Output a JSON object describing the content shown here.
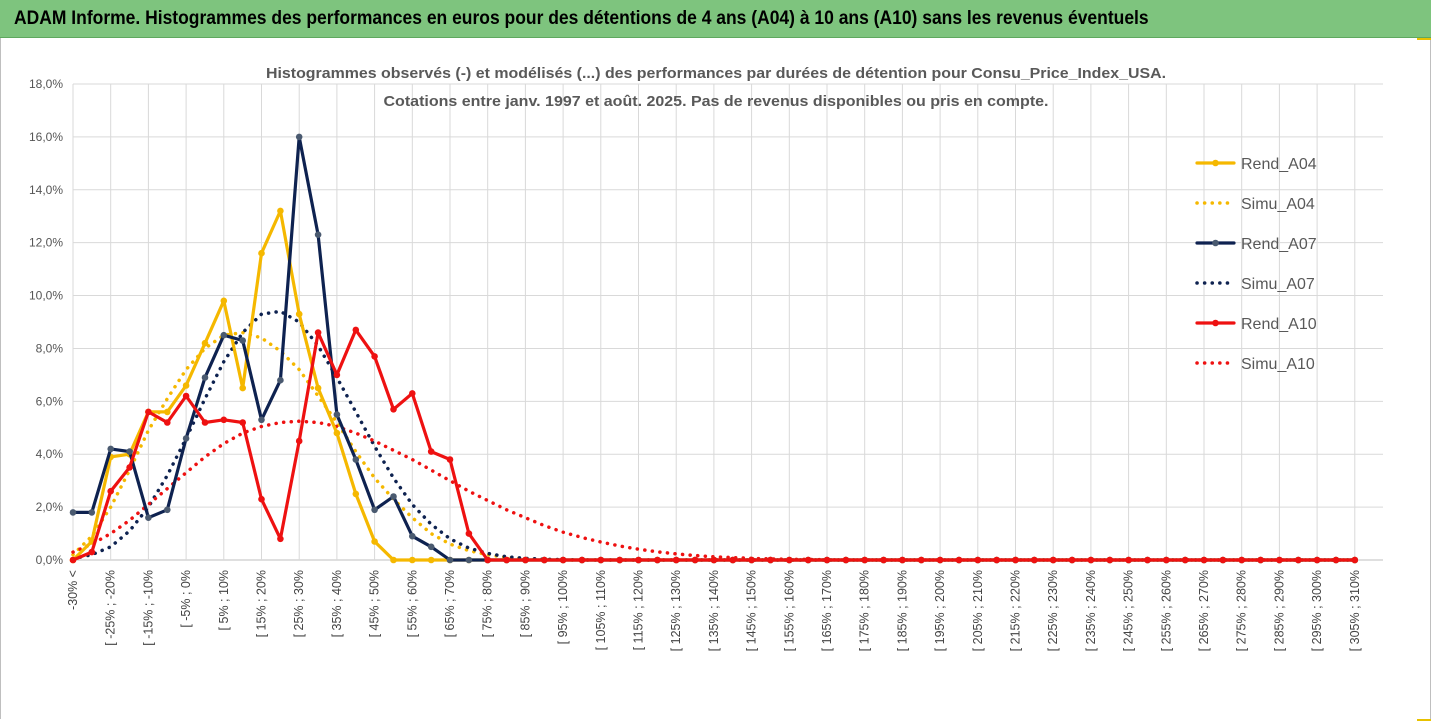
{
  "page": {
    "banner_title": "ADAM Informe. Histogrammes des performances en euros pour des détentions de 4 ans (A04) à 10 ans (A10) sans les revenus éventuels"
  },
  "colors": {
    "banner_bg": "#7ec47e",
    "rend_a04": "#f5b800",
    "rend_a07": "#0e2250",
    "rend_a10": "#ee1111",
    "grid": "#d9d9d9",
    "marker_a07": "#4a5a70"
  },
  "chart_data": {
    "type": "line",
    "title": "Histogrammes observés (-) et modélisés (...) des performances par durées de détention pour Consu_Price_Index_USA.",
    "subtitle": "Cotations entre janv. 1997 et août. 2025. Pas de revenus disponibles ou pris en compte.",
    "ylim": [
      0,
      18
    ],
    "y_ticks": [
      "0,0%",
      "2,0%",
      "4,0%",
      "6,0%",
      "8,0%",
      "10,0%",
      "12,0%",
      "14,0%",
      "16,0%",
      "18,0%"
    ],
    "y_unit": "%",
    "grid": true,
    "legend_position": "right",
    "x_tick_labels": [
      "-30% <",
      "[ -25% ; -20%",
      "[ -15% ; -10%",
      "[ -5% ; 0%",
      "[ 5% ; 10%",
      "[ 15% ; 20%",
      "[ 25% ; 30%",
      "[ 35% ; 40%",
      "[ 45% ; 50%",
      "[ 55% ; 60%",
      "[ 65% ; 70%",
      "[ 75% ; 80%",
      "[ 85% ; 90%",
      "[ 95% ; 100%",
      "[ 105% ; 110%",
      "[ 115% ; 120%",
      "[ 125% ; 130%",
      "[ 135% ; 140%",
      "[ 145% ; 150%",
      "[ 155% ; 160%",
      "[ 165% ; 170%",
      "[ 175% ; 180%",
      "[ 185% ; 190%",
      "[ 195% ; 200%",
      "[ 205% ; 210%",
      "[ 215% ; 220%",
      "[ 225% ; 230%",
      "[ 235% ; 240%",
      "[ 245% ; 250%",
      "[ 255% ; 260%",
      "[ 265% ; 270%",
      "[ 275% ; 280%",
      "[ 285% ; 290%",
      "[ 295% ; 300%",
      "[ 305% ; 310%"
    ],
    "series": [
      {
        "name": "Rend_A04",
        "style": "solid",
        "color": "#f5b800",
        "markers": true,
        "values": [
          0.0,
          0.7,
          3.9,
          4.0,
          5.6,
          5.6,
          6.6,
          8.2,
          9.8,
          6.5,
          11.6,
          13.2,
          9.3,
          6.5,
          4.8,
          2.5,
          0.7,
          0.0,
          0.0,
          0.0,
          0.0,
          0.0,
          0.0,
          0.0,
          0.0,
          0.0,
          0.0,
          0.0,
          0.0,
          0.0,
          0.0,
          0.0,
          0.0,
          0.0,
          0.0,
          0.0,
          0.0,
          0.0,
          0.0,
          0.0,
          0.0,
          0.0,
          0.0,
          0.0,
          0.0,
          0.0,
          0.0,
          0.0,
          0.0,
          0.0,
          0.0,
          0.0,
          0.0,
          0.0,
          0.0,
          0.0,
          0.0,
          0.0,
          0.0,
          0.0,
          0.0,
          0.0,
          0.0,
          0.0,
          0.0,
          0.0,
          0.0,
          0.0,
          0.0
        ]
      },
      {
        "name": "Simu_A04",
        "style": "dotted",
        "color": "#f5b800",
        "markers": false,
        "values": [
          0.2,
          0.9,
          2.0,
          3.4,
          4.9,
          6.1,
          7.2,
          8.0,
          8.5,
          8.6,
          8.4,
          7.9,
          7.2,
          6.2,
          5.2,
          4.1,
          3.1,
          2.3,
          1.6,
          1.0,
          0.6,
          0.35,
          0.2,
          0.1,
          0.05,
          0.02,
          0.0,
          0.0,
          0.0,
          0.0,
          0.0,
          0.0,
          0.0,
          0.0,
          0.0,
          0.0,
          0.0,
          0.0,
          0.0,
          0.0,
          0.0,
          0.0,
          0.0,
          0.0,
          0.0,
          0.0,
          0.0,
          0.0,
          0.0,
          0.0,
          0.0,
          0.0,
          0.0,
          0.0,
          0.0,
          0.0,
          0.0,
          0.0,
          0.0,
          0.0,
          0.0,
          0.0,
          0.0,
          0.0,
          0.0,
          0.0,
          0.0,
          0.0,
          0.0
        ]
      },
      {
        "name": "Rend_A07",
        "style": "solid",
        "color": "#0e2250",
        "markers": true,
        "values": [
          1.8,
          1.8,
          4.2,
          4.1,
          1.6,
          1.9,
          4.6,
          6.9,
          8.5,
          8.3,
          5.3,
          6.8,
          16.0,
          12.3,
          5.5,
          3.8,
          1.9,
          2.4,
          0.9,
          0.5,
          0.0,
          0.0,
          0.0,
          0.0,
          0.0,
          0.0,
          0.0,
          0.0,
          0.0,
          0.0,
          0.0,
          0.0,
          0.0,
          0.0,
          0.0,
          0.0,
          0.0,
          0.0,
          0.0,
          0.0,
          0.0,
          0.0,
          0.0,
          0.0,
          0.0,
          0.0,
          0.0,
          0.0,
          0.0,
          0.0,
          0.0,
          0.0,
          0.0,
          0.0,
          0.0,
          0.0,
          0.0,
          0.0,
          0.0,
          0.0,
          0.0,
          0.0,
          0.0,
          0.0,
          0.0,
          0.0,
          0.0,
          0.0,
          0.0
        ]
      },
      {
        "name": "Simu_A07",
        "style": "dotted",
        "color": "#0e2250",
        "markers": false,
        "values": [
          0.05,
          0.2,
          0.5,
          1.1,
          2.0,
          3.2,
          4.6,
          6.1,
          7.5,
          8.6,
          9.3,
          9.4,
          9.0,
          8.1,
          6.9,
          5.6,
          4.3,
          3.1,
          2.1,
          1.35,
          0.8,
          0.45,
          0.25,
          0.12,
          0.06,
          0.03,
          0.01,
          0.0,
          0.0,
          0.0,
          0.0,
          0.0,
          0.0,
          0.0,
          0.0,
          0.0,
          0.0,
          0.0,
          0.0,
          0.0,
          0.0,
          0.0,
          0.0,
          0.0,
          0.0,
          0.0,
          0.0,
          0.0,
          0.0,
          0.0,
          0.0,
          0.0,
          0.0,
          0.0,
          0.0,
          0.0,
          0.0,
          0.0,
          0.0,
          0.0,
          0.0,
          0.0,
          0.0,
          0.0,
          0.0,
          0.0,
          0.0,
          0.0,
          0.0
        ]
      },
      {
        "name": "Rend_A10",
        "style": "solid",
        "color": "#ee1111",
        "markers": true,
        "values": [
          0.0,
          0.3,
          2.6,
          3.5,
          5.6,
          5.2,
          6.2,
          5.2,
          5.3,
          5.2,
          2.3,
          0.8,
          4.5,
          8.6,
          7.0,
          8.7,
          7.7,
          5.7,
          6.3,
          4.1,
          3.8,
          1.0,
          0.0,
          0.0,
          0.0,
          0.0,
          0.0,
          0.0,
          0.0,
          0.0,
          0.0,
          0.0,
          0.0,
          0.0,
          0.0,
          0.0,
          0.0,
          0.0,
          0.0,
          0.0,
          0.0,
          0.0,
          0.0,
          0.0,
          0.0,
          0.0,
          0.0,
          0.0,
          0.0,
          0.0,
          0.0,
          0.0,
          0.0,
          0.0,
          0.0,
          0.0,
          0.0,
          0.0,
          0.0,
          0.0,
          0.0,
          0.0,
          0.0,
          0.0,
          0.0,
          0.0,
          0.0,
          0.0,
          0.0
        ]
      },
      {
        "name": "Simu_A10",
        "style": "dotted",
        "color": "#ee1111",
        "markers": false,
        "values": [
          0.3,
          0.6,
          1.0,
          1.5,
          2.1,
          2.7,
          3.3,
          3.9,
          4.4,
          4.8,
          5.05,
          5.2,
          5.25,
          5.2,
          5.05,
          4.8,
          4.5,
          4.15,
          3.8,
          3.4,
          3.0,
          2.6,
          2.25,
          1.9,
          1.6,
          1.3,
          1.05,
          0.85,
          0.68,
          0.53,
          0.41,
          0.31,
          0.23,
          0.17,
          0.12,
          0.09,
          0.06,
          0.04,
          0.03,
          0.02,
          0.01,
          0.0,
          0.0,
          0.0,
          0.0,
          0.0,
          0.0,
          0.0,
          0.0,
          0.0,
          0.0,
          0.0,
          0.0,
          0.0,
          0.0,
          0.0,
          0.0,
          0.0,
          0.0,
          0.0,
          0.0,
          0.0,
          0.0,
          0.0,
          0.0,
          0.0,
          0.0,
          0.0,
          0.0
        ]
      }
    ]
  }
}
